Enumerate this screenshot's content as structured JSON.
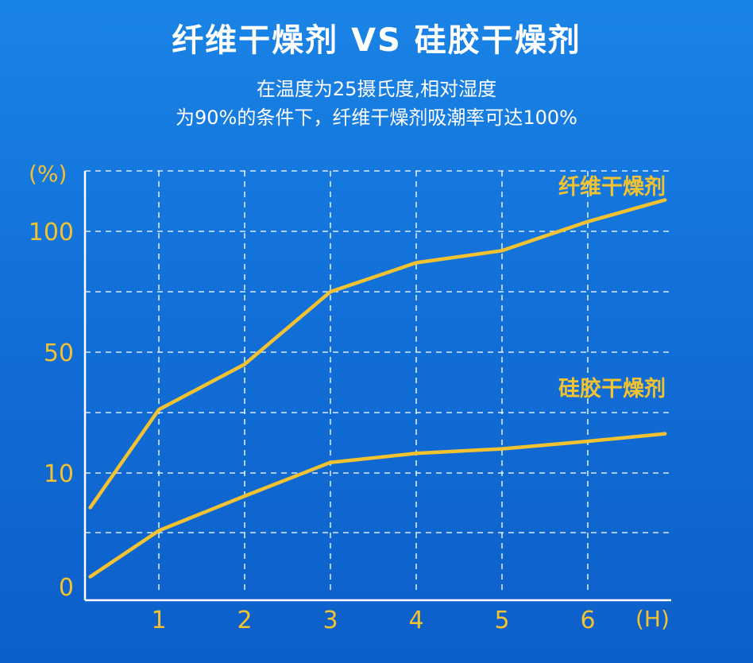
{
  "title": "纤维干燥剂  VS  硅胶干燥剂",
  "subtitle_line1": "在温度为25摄氏度,相对湿度",
  "subtitle_line2": "为90%的条件下，纤维干燥剂吸潮率可达100%",
  "colors": {
    "background": "#1270d8",
    "accent": "#f2c230",
    "grid": "#ffffff",
    "text": "#ffffff"
  },
  "chart_data": {
    "type": "line",
    "title": "纤维干燥剂  VS  硅胶干燥剂",
    "xlabel": "(H)",
    "ylabel": "(%)",
    "x_ticks": [
      "1",
      "2",
      "3",
      "4",
      "5",
      "6"
    ],
    "y_ticks": [
      "0",
      "10",
      "50",
      "100"
    ],
    "x": [
      0.2,
      1,
      2,
      3,
      4,
      5,
      6,
      6.9
    ],
    "grid": true,
    "series": [
      {
        "name": "纤维干燥剂",
        "values": [
          7,
          31,
          46,
          75,
          87,
          92,
          104,
          113
        ]
      },
      {
        "name": "硅胶干燥剂",
        "values": [
          1,
          5,
          8,
          13.5,
          16.5,
          18,
          20.5,
          23
        ]
      }
    ]
  }
}
